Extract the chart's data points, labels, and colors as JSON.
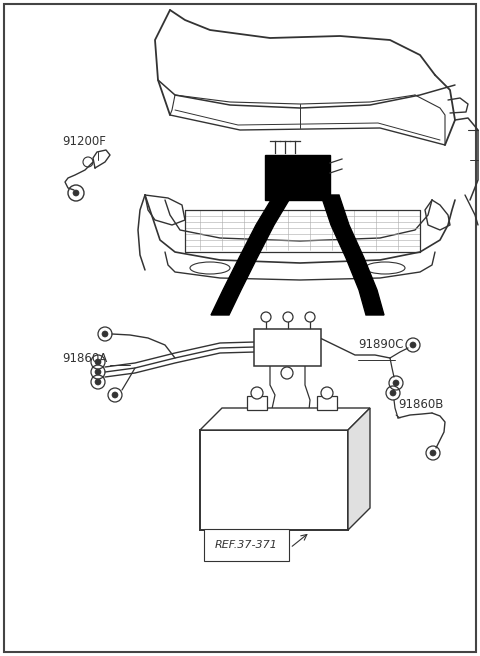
{
  "background_color": "#ffffff",
  "line_color": "#333333",
  "black_fill": "#000000",
  "light_gray": "#e0e0e0",
  "label_91200F": "91200F",
  "label_91860A": "91860A",
  "label_91890C": "91890C",
  "label_91860B": "91860B",
  "label_ref": "REF.37-371",
  "figsize": [
    4.8,
    6.56
  ],
  "dpi": 100
}
